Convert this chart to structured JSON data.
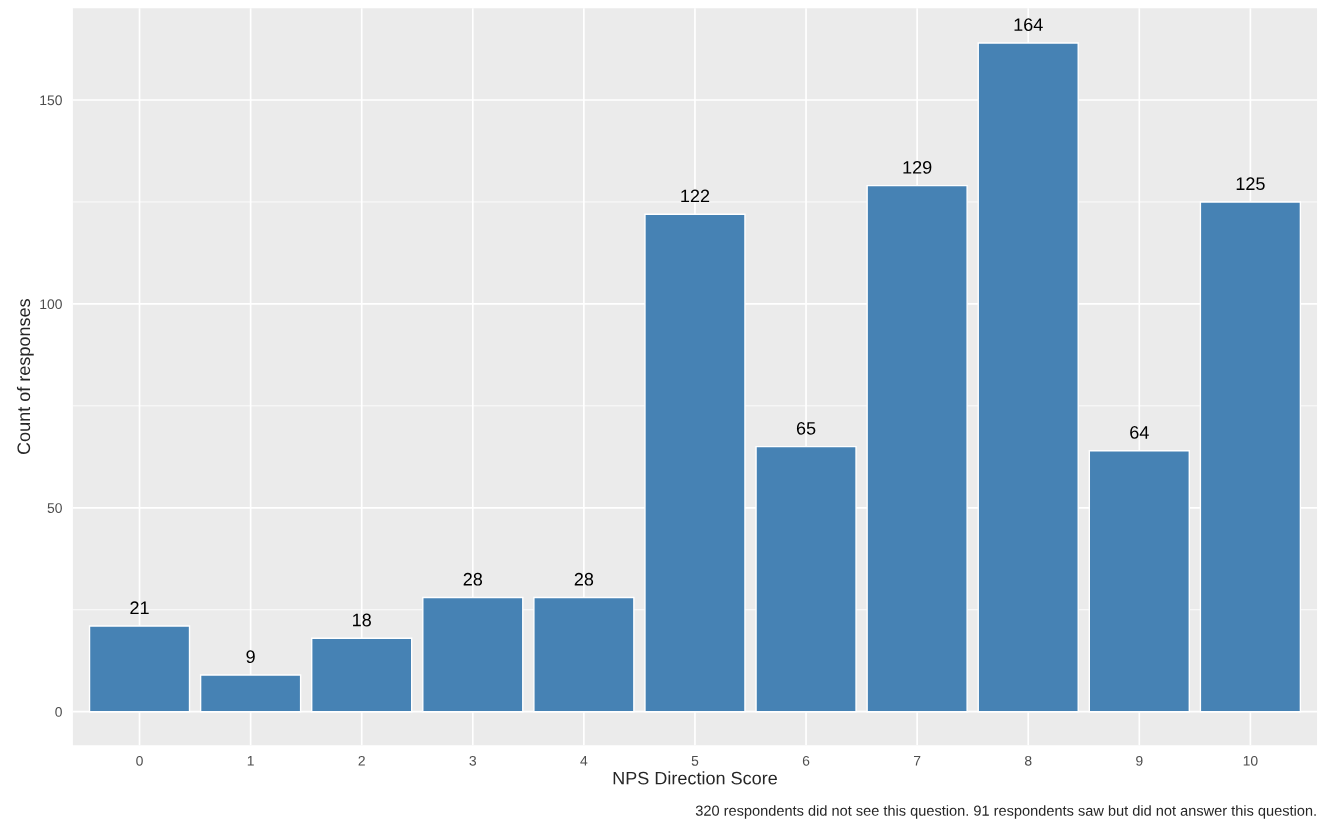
{
  "chart_data": {
    "type": "bar",
    "xlabel": "NPS Direction Score",
    "ylabel": "Count of responses",
    "categories": [
      "0",
      "1",
      "2",
      "3",
      "4",
      "5",
      "6",
      "7",
      "8",
      "9",
      "10"
    ],
    "values": [
      21,
      9,
      18,
      28,
      28,
      122,
      65,
      129,
      164,
      64,
      125
    ],
    "color": "#4682b4",
    "ylim": [
      -8.2,
      172.5
    ],
    "yticks": [
      0,
      50,
      100,
      150
    ],
    "grid": true,
    "data_labels": true,
    "annotations": [
      "320 respondents did not see this question. 91 respondents saw but did not answer this question."
    ]
  }
}
